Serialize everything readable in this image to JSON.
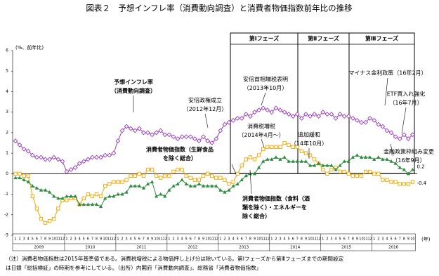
{
  "chart_data": {
    "type": "line",
    "title": "図表２　予想インフレ率（消費動向調査）と消費者物価指数前年比の推移",
    "y_label": "(%、前年比)",
    "x_unit": "(年)",
    "ylim": [
      -3,
      6
    ],
    "yticks": [
      -3,
      -2,
      -1,
      0,
      1,
      2,
      3,
      4,
      5,
      6
    ],
    "categories": [
      "1",
      "2",
      "3",
      "4",
      "5",
      "6",
      "7",
      "8",
      "9",
      "10",
      "11",
      "12",
      "1",
      "2",
      "3",
      "4",
      "5",
      "6",
      "7",
      "8",
      "9",
      "10",
      "11",
      "12",
      "1",
      "2",
      "3",
      "4",
      "5",
      "6",
      "7",
      "8",
      "9",
      "10",
      "11",
      "12",
      "1",
      "2",
      "3",
      "4",
      "5",
      "6",
      "7",
      "8",
      "9",
      "10",
      "11",
      "12",
      "1",
      "2",
      "3",
      "4",
      "5",
      "6",
      "7",
      "8",
      "9",
      "10",
      "11",
      "12",
      "1",
      "2",
      "3",
      "4",
      "5",
      "6",
      "7",
      "8",
      "9",
      "10",
      "11",
      "12",
      "1",
      "2",
      "3",
      "4",
      "5",
      "6",
      "7",
      "8",
      "9",
      "10",
      "11",
      "12",
      "1",
      "2",
      "3",
      "4",
      "5",
      "6",
      "7",
      "8",
      "9",
      "10"
    ],
    "years": [
      "2009",
      "2010",
      "2011",
      "2012",
      "2013",
      "2014",
      "2015",
      "2016"
    ],
    "series": [
      {
        "name": "予想インフレ率（消費動向調査）",
        "color": "#9b3fbf",
        "values": [
          1.6,
          1.4,
          1.2,
          1.1,
          0.9,
          0.8,
          0.8,
          0.7,
          0.7,
          0.8,
          0.7,
          0.6,
          0.1,
          0.2,
          0.3,
          0.5,
          0.6,
          0.7,
          0.8,
          0.8,
          0.8,
          0.9,
          0.9,
          1.0,
          1.6,
          2.1,
          2.3,
          2.2,
          2.1,
          2.2,
          2.0,
          2.0,
          1.9,
          2.0,
          2.1,
          1.9,
          1.9,
          1.8,
          1.7,
          1.8,
          1.8,
          1.8,
          1.7,
          1.6,
          1.8,
          1.6,
          1.5,
          1.7,
          2.1,
          2.4,
          2.5,
          2.6,
          2.7,
          2.7,
          2.9,
          2.8,
          3.0,
          3.1,
          3.2,
          3.1,
          3.0,
          3.2,
          3.1,
          3.0,
          2.9,
          2.8,
          2.9,
          2.7,
          2.9,
          2.8,
          2.9,
          2.8,
          3.0,
          2.9,
          2.9,
          2.7,
          2.9,
          2.8,
          2.8,
          2.7,
          2.6,
          2.5,
          2.5,
          2.7,
          2.6,
          2.4,
          2.3,
          2.1,
          2.0,
          1.8,
          1.7,
          1.9,
          1.7,
          1.9
        ]
      },
      {
        "name": "消費者物価指数（生鮮食品を除く総合）",
        "color": "#f0a800",
        "values": [
          0.0,
          0.0,
          -0.1,
          -0.1,
          -1.1,
          -1.7,
          -2.2,
          -2.4,
          -2.3,
          -2.2,
          -1.7,
          -1.3,
          -1.3,
          -1.2,
          -1.2,
          -1.5,
          -1.2,
          -1.0,
          -1.1,
          -1.0,
          -1.1,
          -0.6,
          -0.5,
          -0.4,
          -0.4,
          -0.4,
          -0.3,
          -0.1,
          -0.1,
          0.0,
          -0.1,
          0.2,
          0.2,
          -0.1,
          -0.2,
          -0.1,
          -0.1,
          0.1,
          0.2,
          0.2,
          -0.1,
          -0.2,
          -0.3,
          -0.3,
          -0.1,
          0.0,
          -0.1,
          -0.2,
          -0.2,
          -0.3,
          -0.5,
          -0.4,
          0.0,
          0.4,
          0.7,
          0.8,
          0.7,
          0.9,
          1.2,
          1.3,
          1.3,
          1.3,
          1.3,
          1.5,
          1.4,
          1.3,
          1.3,
          1.1,
          1.0,
          0.9,
          0.7,
          0.5,
          0.2,
          0.0,
          0.2,
          0.3,
          0.1,
          0.1,
          0.0,
          -0.1,
          -0.1,
          -0.1,
          0.1,
          0.1,
          0.0,
          0.0,
          -0.3,
          -0.3,
          -0.4,
          -0.4,
          -0.5,
          -0.5,
          -0.5,
          -0.4
        ]
      },
      {
        "name": "消費者物価指数（食料（酒類を除く）・エネルギーを除く総合）",
        "color": "#2e8b3e",
        "values": [
          -0.2,
          -0.2,
          -0.3,
          -0.4,
          -0.6,
          -0.7,
          -0.8,
          -0.8,
          -0.9,
          -1.1,
          -1.2,
          -1.2,
          -1.1,
          -1.1,
          -1.1,
          -1.5,
          -1.5,
          -1.5,
          -1.5,
          -1.5,
          -1.6,
          -1.2,
          -1.1,
          -1.1,
          -1.0,
          -1.0,
          -0.9,
          -0.6,
          -0.6,
          -0.6,
          -0.7,
          -0.5,
          -0.4,
          -1.1,
          -1.0,
          -1.1,
          -0.8,
          -0.6,
          -0.5,
          -0.3,
          -0.5,
          -0.6,
          -0.6,
          -0.5,
          -0.6,
          -0.6,
          -0.6,
          -0.6,
          -0.8,
          -0.9,
          -0.8,
          -0.6,
          -0.5,
          -0.3,
          -0.1,
          0.0,
          0.0,
          0.3,
          0.6,
          0.7,
          0.7,
          0.8,
          0.7,
          0.8,
          0.6,
          0.6,
          0.6,
          0.6,
          0.6,
          0.4,
          0.4,
          0.5,
          0.4,
          0.4,
          0.4,
          0.2,
          0.4,
          0.6,
          0.6,
          0.8,
          0.9,
          0.8,
          0.8,
          0.8,
          0.7,
          0.8,
          0.7,
          0.7,
          0.6,
          0.5,
          0.3,
          0.2,
          0.0,
          0.2
        ]
      }
    ],
    "phases": [
      "第Ⅰフェーズ",
      "第Ⅱフェーズ",
      "第Ⅲフェーズ"
    ],
    "annotations": [
      {
        "lines": [
          "予想インフレ率",
          "（消費動向調査）"
        ]
      },
      {
        "lines": [
          "安倍政権成立",
          "（2012年12月）"
        ]
      },
      {
        "lines": [
          "安倍首相増税表明",
          "（2013年10月）"
        ]
      },
      {
        "lines": [
          "消費税増税",
          "（2014年4月～）"
        ]
      },
      {
        "lines": [
          "追加緩和",
          "（14年10月）"
        ]
      },
      {
        "lines": [
          "マイナス金利政策（16年2月）"
        ]
      },
      {
        "lines": [
          "ETF買入れ強化",
          "（16年7月）"
        ]
      },
      {
        "lines": [
          "金融政策枠組み変更",
          "（16年9月）"
        ]
      },
      {
        "lines": [
          "消費者物価指数（生鮮食品",
          "を除く総合）"
        ]
      },
      {
        "lines": [
          "消費者物価指数（食料（酒",
          "類を除く）・エネルギーを",
          "除く総合）"
        ]
      }
    ],
    "notes": [
      "（注）消費者物価指数は2015年基準値である。消費税増税による物価押し上げ分は除いている。第Ⅰフェーズから第Ⅲフェーズまでの期間設定",
      "は日銀「総括検証」の時期を参考にしている。（出所）内閣府「消費動向調査」、総務省「消費者物価指数」"
    ]
  }
}
